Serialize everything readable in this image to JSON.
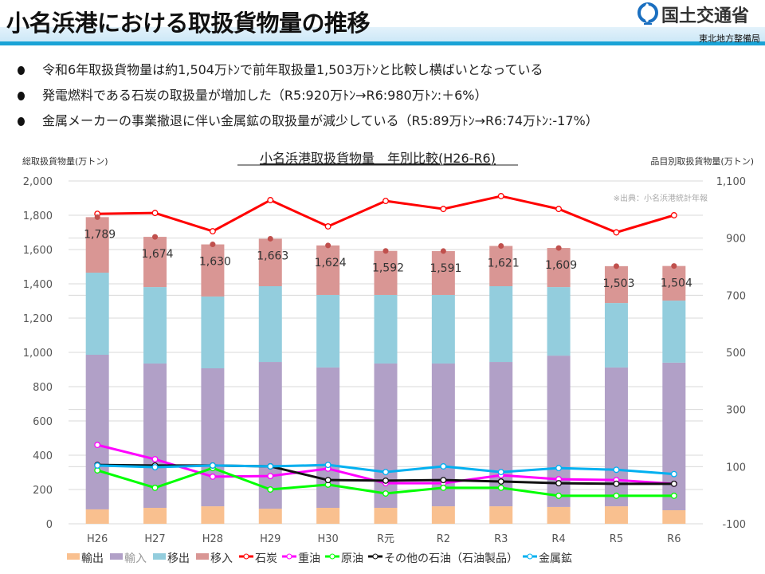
{
  "header": {
    "title": "小名浜港における取扱貨物量の推移",
    "logo_text": "国土交通省",
    "bureau": "東北地方整備局"
  },
  "bullets": [
    "令和6年取扱貨物量は約1,504万ﾄﾝで前年取扱量1,503万ﾄﾝと比較し横ばいとなっている",
    "発電燃料である石炭の取扱量が増加した（R5:920万ﾄﾝ→R6:980万ﾄﾝ:＋6%）",
    "金属メーカーの事業撤退に伴い金属鉱の取扱量が減少している（R5:89万ﾄﾝ→R6:74万ﾄﾝ:-17%）"
  ],
  "chart_data": {
    "type": "bar",
    "title": "小名浜港取扱貨物量　年別比較(H26-R6)",
    "ylabel": "総取扱貨物量(万トン)",
    "y2label": "品目別取扱貨物量(万トン)",
    "source_note": "※出典：小名浜港統計年報",
    "categories": [
      "H26",
      "H27",
      "H28",
      "H29",
      "H30",
      "R元",
      "R2",
      "R3",
      "R4",
      "R5",
      "R6"
    ],
    "ylim": [
      0,
      2000
    ],
    "yticks": [
      "0",
      "200",
      "400",
      "600",
      "800",
      "1,000",
      "1,200",
      "1,400",
      "1,600",
      "1,800",
      "2,000"
    ],
    "y2lim": [
      -100,
      1100
    ],
    "y2ticks": [
      "-100",
      "100",
      "300",
      "500",
      "700",
      "900",
      "1,100"
    ],
    "grid": true,
    "legend_position": "bottom",
    "stacked_series": [
      {
        "name": "輸出",
        "axis": "left",
        "color": "#f9c08f",
        "values": [
          84,
          93,
          102,
          88,
          93,
          93,
          102,
          102,
          98,
          102,
          79
        ]
      },
      {
        "name": "輸入",
        "axis": "left",
        "color": "#b1a0c7",
        "values": [
          902,
          842,
          805,
          856,
          819,
          842,
          833,
          842,
          883,
          810,
          861
        ]
      },
      {
        "name": "移出",
        "axis": "left",
        "color": "#93cddd",
        "values": [
          479,
          446,
          419,
          442,
          423,
          400,
          400,
          442,
          400,
          376,
          362
        ]
      },
      {
        "name": "移入",
        "axis": "left",
        "color": "#d99694",
        "values": [
          324,
          293,
          304,
          277,
          289,
          257,
          256,
          235,
          228,
          215,
          202
        ]
      }
    ],
    "totals": {
      "color": "#c0504d",
      "values": [
        1789,
        1674,
        1630,
        1663,
        1624,
        1592,
        1591,
        1621,
        1609,
        1503,
        1504
      ],
      "labels": [
        "1,789",
        "1,674",
        "1,630",
        "1,663",
        "1,624",
        "1,592",
        "1,591",
        "1,621",
        "1,609",
        "1,503",
        "1,504"
      ]
    },
    "line_series": [
      {
        "name": "石炭",
        "axis": "right",
        "color": "#ff0000",
        "values": [
          985,
          988,
          924,
          1033,
          941,
          1030,
          1002,
          1047,
          1002,
          920,
          980
        ]
      },
      {
        "name": "重油",
        "axis": "right",
        "color": "#ff00ff",
        "values": [
          176,
          126,
          65,
          67,
          93,
          42,
          42,
          70,
          56,
          53,
          40
        ]
      },
      {
        "name": "原油",
        "axis": "right",
        "color": "#00ff00",
        "values": [
          87,
          26,
          95,
          20,
          37,
          6,
          26,
          26,
          -2,
          -2,
          -2
        ]
      },
      {
        "name": "その他の石油（石油製品）",
        "axis": "right",
        "color": "#111111",
        "values": [
          106,
          104,
          104,
          101,
          53,
          51,
          53,
          48,
          42,
          40,
          40
        ]
      },
      {
        "name": "金属鉱",
        "axis": "right",
        "color": "#00b0f0",
        "values": [
          104,
          98,
          104,
          101,
          106,
          81,
          101,
          81,
          95,
          89,
          74
        ]
      }
    ]
  }
}
